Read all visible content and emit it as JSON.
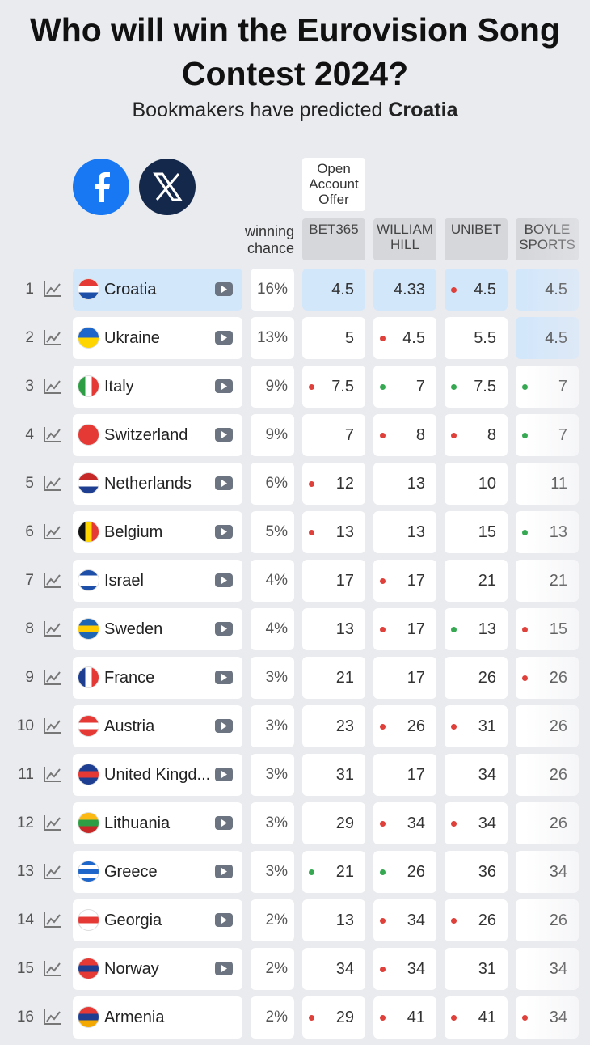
{
  "header": {
    "title": "Who will win the Eurovision Song Contest 2024?",
    "subtitle": "Bookmakers have predicted ",
    "subtitle_bold": "Croatia"
  },
  "table": {
    "offer": "Open Account Offer",
    "chance_header": "winning chance",
    "bookmakers": [
      "BET365",
      "WILLIAM HILL",
      "UNIBET",
      "BOYLE SPORTS"
    ],
    "rows": [
      {
        "rank": 1,
        "country": "Croatia",
        "flag": {
          "dir": "h",
          "colors": [
            "#e53935",
            "#ffffff",
            "#1e4fa8"
          ]
        },
        "video": true,
        "highlight": true,
        "chance": "16%",
        "odds": [
          4.5,
          4.33,
          4.5,
          4.5
        ],
        "dots": [
          null,
          null,
          "red",
          null
        ],
        "best": [
          true,
          true,
          true,
          true
        ]
      },
      {
        "rank": 2,
        "country": "Ukraine",
        "flag": {
          "dir": "h",
          "colors": [
            "#1e66c9",
            "#ffd500"
          ]
        },
        "video": true,
        "highlight": false,
        "chance": "13%",
        "odds": [
          5,
          4.5,
          5.5,
          4.5
        ],
        "dots": [
          null,
          "red",
          null,
          null
        ],
        "best": [
          false,
          false,
          false,
          true
        ]
      },
      {
        "rank": 3,
        "country": "Italy",
        "flag": {
          "dir": "v",
          "colors": [
            "#2e9e44",
            "#ffffff",
            "#e53935"
          ]
        },
        "video": true,
        "highlight": false,
        "chance": "9%",
        "odds": [
          7.5,
          7,
          7.5,
          7
        ],
        "dots": [
          "red",
          "green",
          "green",
          "green"
        ],
        "best": [
          false,
          false,
          false,
          false
        ]
      },
      {
        "rank": 4,
        "country": "Switzerland",
        "flag": {
          "dir": "h",
          "colors": [
            "#e53935"
          ]
        },
        "video": true,
        "highlight": false,
        "chance": "9%",
        "odds": [
          7,
          8,
          8,
          7
        ],
        "dots": [
          null,
          "red",
          "red",
          "green"
        ],
        "best": [
          false,
          false,
          false,
          false
        ]
      },
      {
        "rank": 5,
        "country": "Netherlands",
        "flag": {
          "dir": "h",
          "colors": [
            "#c62828",
            "#ffffff",
            "#1e3f91"
          ]
        },
        "video": true,
        "highlight": false,
        "chance": "6%",
        "odds": [
          12,
          13,
          10,
          11
        ],
        "dots": [
          "red",
          null,
          null,
          null
        ],
        "best": [
          false,
          false,
          false,
          false
        ]
      },
      {
        "rank": 6,
        "country": "Belgium",
        "flag": {
          "dir": "v",
          "colors": [
            "#111111",
            "#ffd600",
            "#e53935"
          ]
        },
        "video": true,
        "highlight": false,
        "chance": "5%",
        "odds": [
          13,
          13,
          15,
          13
        ],
        "dots": [
          "red",
          null,
          null,
          "green"
        ],
        "best": [
          false,
          false,
          false,
          false
        ]
      },
      {
        "rank": 7,
        "country": "Israel",
        "flag": {
          "dir": "h",
          "colors": [
            "#1e4fa8",
            "#ffffff",
            "#ffffff",
            "#1e4fa8"
          ]
        },
        "video": true,
        "highlight": false,
        "chance": "4%",
        "odds": [
          17,
          17,
          21,
          21
        ],
        "dots": [
          null,
          "red",
          null,
          null
        ],
        "best": [
          false,
          false,
          false,
          false
        ]
      },
      {
        "rank": 8,
        "country": "Sweden",
        "flag": {
          "dir": "h",
          "colors": [
            "#1e66b3",
            "#ffcc00",
            "#1e66b3"
          ]
        },
        "video": true,
        "highlight": false,
        "chance": "4%",
        "odds": [
          13,
          17,
          13,
          15
        ],
        "dots": [
          null,
          "red",
          "green",
          "red"
        ],
        "best": [
          false,
          false,
          false,
          false
        ]
      },
      {
        "rank": 9,
        "country": "France",
        "flag": {
          "dir": "v",
          "colors": [
            "#1e3f91",
            "#ffffff",
            "#e53935"
          ]
        },
        "video": true,
        "highlight": false,
        "chance": "3%",
        "odds": [
          21,
          17,
          26,
          26
        ],
        "dots": [
          null,
          null,
          null,
          "red"
        ],
        "best": [
          false,
          false,
          false,
          false
        ]
      },
      {
        "rank": 10,
        "country": "Austria",
        "flag": {
          "dir": "h",
          "colors": [
            "#e53935",
            "#ffffff",
            "#e53935"
          ]
        },
        "video": true,
        "highlight": false,
        "chance": "3%",
        "odds": [
          23,
          26,
          31,
          26
        ],
        "dots": [
          null,
          "red",
          "red",
          null
        ],
        "best": [
          false,
          false,
          false,
          false
        ]
      },
      {
        "rank": 11,
        "country": "United Kingd...",
        "flag": {
          "dir": "h",
          "colors": [
            "#1e3f91",
            "#e53935",
            "#1e3f91"
          ]
        },
        "video": true,
        "highlight": false,
        "chance": "3%",
        "odds": [
          31,
          17,
          34,
          26
        ],
        "dots": [
          null,
          null,
          null,
          null
        ],
        "best": [
          false,
          false,
          false,
          false
        ]
      },
      {
        "rank": 12,
        "country": "Lithuania",
        "flag": {
          "dir": "h",
          "colors": [
            "#fdb913",
            "#2e9e44",
            "#c62828"
          ]
        },
        "video": true,
        "highlight": false,
        "chance": "3%",
        "odds": [
          29,
          34,
          34,
          26
        ],
        "dots": [
          null,
          "red",
          "red",
          null
        ],
        "best": [
          false,
          false,
          false,
          false
        ]
      },
      {
        "rank": 13,
        "country": "Greece",
        "flag": {
          "dir": "h",
          "colors": [
            "#1e66c9",
            "#ffffff",
            "#1e66c9",
            "#ffffff",
            "#1e66c9"
          ]
        },
        "video": true,
        "highlight": false,
        "chance": "3%",
        "odds": [
          21,
          26,
          36,
          34
        ],
        "dots": [
          "green",
          "green",
          null,
          null
        ],
        "best": [
          false,
          false,
          false,
          false
        ]
      },
      {
        "rank": 14,
        "country": "Georgia",
        "flag": {
          "dir": "h",
          "colors": [
            "#ffffff",
            "#e53935",
            "#ffffff"
          ]
        },
        "video": true,
        "highlight": false,
        "chance": "2%",
        "odds": [
          13,
          34,
          26,
          26
        ],
        "dots": [
          null,
          "red",
          "red",
          null
        ],
        "best": [
          false,
          false,
          false,
          false
        ]
      },
      {
        "rank": 15,
        "country": "Norway",
        "flag": {
          "dir": "h",
          "colors": [
            "#e53935",
            "#1e3f91",
            "#e53935"
          ]
        },
        "video": true,
        "highlight": false,
        "chance": "2%",
        "odds": [
          34,
          34,
          31,
          34
        ],
        "dots": [
          null,
          "red",
          null,
          null
        ],
        "best": [
          false,
          false,
          false,
          false
        ]
      },
      {
        "rank": 16,
        "country": "Armenia",
        "flag": {
          "dir": "h",
          "colors": [
            "#e53935",
            "#1e3f91",
            "#f2a800"
          ]
        },
        "video": false,
        "highlight": false,
        "chance": "2%",
        "odds": [
          29,
          41,
          41,
          34
        ],
        "dots": [
          "red",
          "red",
          "red",
          "red"
        ],
        "best": [
          false,
          false,
          false,
          false
        ]
      }
    ]
  }
}
